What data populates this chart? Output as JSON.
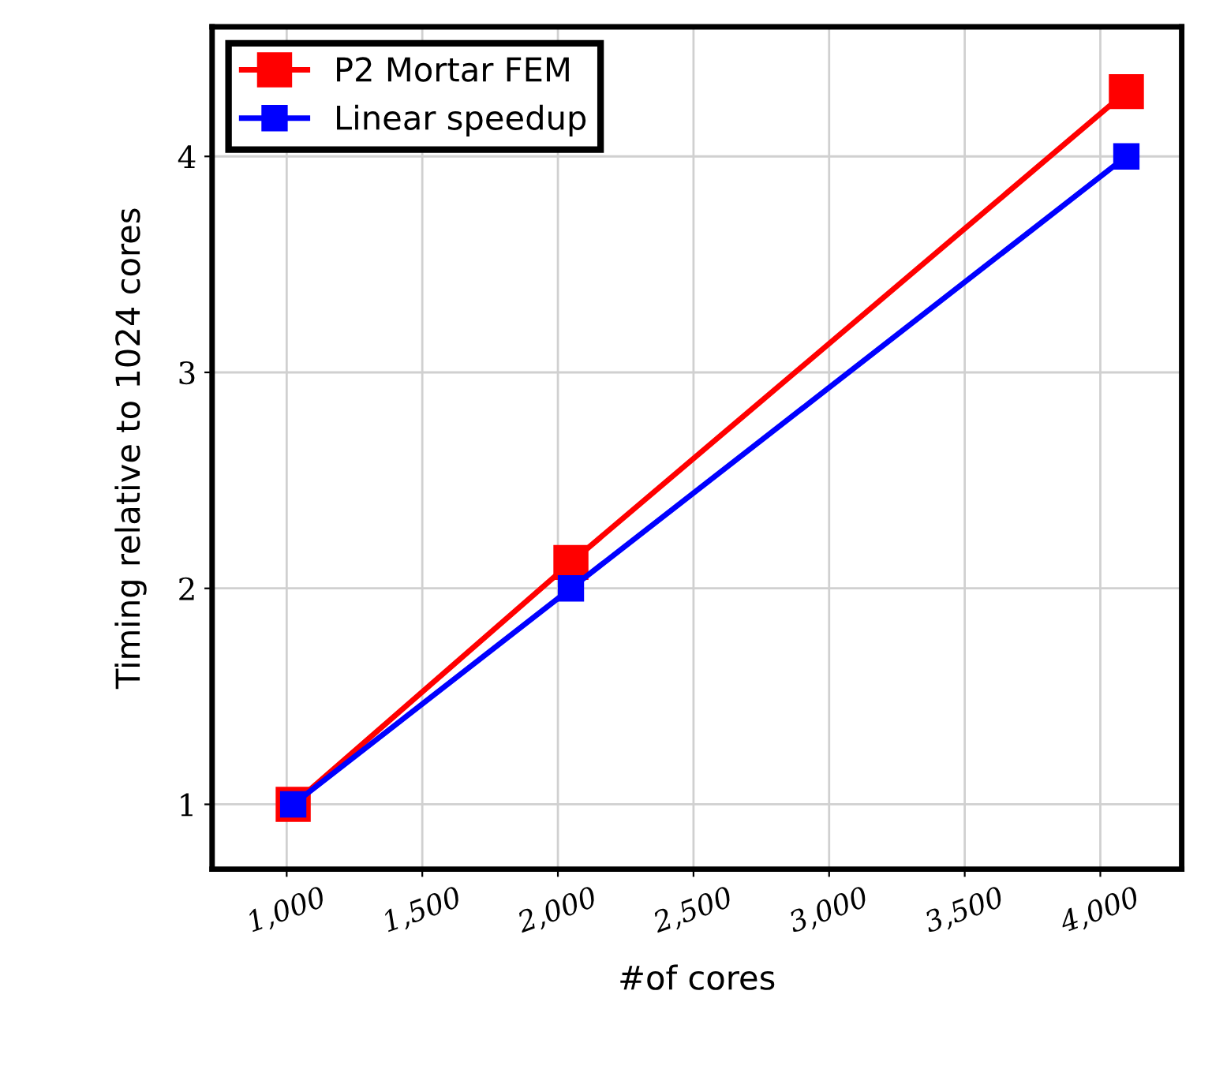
{
  "chart_data": {
    "type": "line",
    "xlabel": "#of cores",
    "ylabel": "Timing relative to 1024 cores",
    "x": [
      1024,
      2048,
      4096
    ],
    "series": [
      {
        "name": "P2 Mortar FEM",
        "color": "#ff0000",
        "values": [
          1,
          2.12,
          4.3
        ]
      },
      {
        "name": "Linear speedup",
        "color": "#0000ff",
        "values": [
          1,
          2,
          4
        ]
      }
    ],
    "xlim": [
      725,
      4300
    ],
    "xticks": [
      {
        "value": 1000,
        "label": "1,000"
      },
      {
        "value": 1500,
        "label": "1,500"
      },
      {
        "value": 2000,
        "label": "2,000"
      },
      {
        "value": 2500,
        "label": "2,500"
      },
      {
        "value": 3000,
        "label": "3,000"
      },
      {
        "value": 3500,
        "label": "3,500"
      },
      {
        "value": 4000,
        "label": "4,000"
      }
    ],
    "ylim": [
      0.7,
      4.6
    ],
    "yticks": [
      1,
      2,
      3,
      4
    ],
    "grid": true,
    "legend": "top left",
    "marker": "square",
    "line_style": "solid"
  }
}
